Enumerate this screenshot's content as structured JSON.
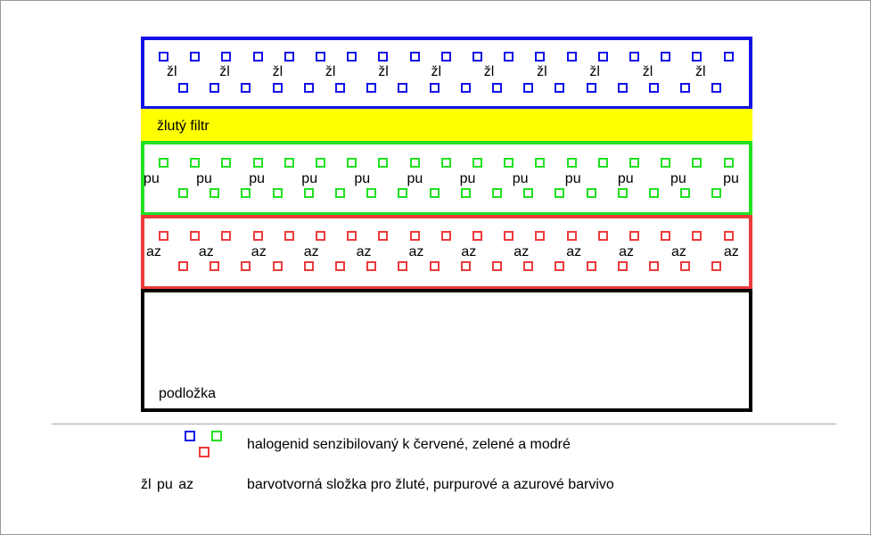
{
  "layers": {
    "blue": {
      "tag": "žl"
    },
    "yellow": {
      "label": "žlutý filtr"
    },
    "green": {
      "tag": "pu"
    },
    "red": {
      "tag": "az"
    },
    "base": {
      "label": "podložka"
    }
  },
  "colors": {
    "blue": "#1212e8",
    "yellow": "#ffff00",
    "green": "#22e022",
    "red": "#ec3b3b",
    "black": "#000000"
  },
  "legend": {
    "grain_description": "halogenid senzibilovaný k červené, zelené a modré",
    "coupler_symbols": "žl pu az",
    "coupler_description": "barvotvorná složka pro žluté, purpurové a azurové barvivo"
  }
}
